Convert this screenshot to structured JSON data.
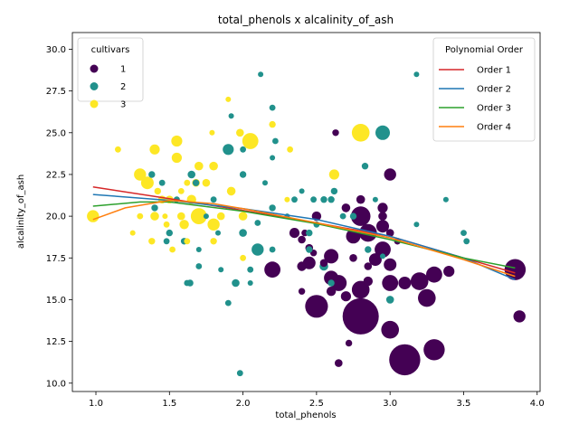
{
  "chart_data": {
    "type": "scatter",
    "title": "total_phenols x alcalinity_of_ash",
    "xlabel": "total_phenols",
    "ylabel": "alcalinity_of_ash",
    "xlim": [
      0.84,
      4.02
    ],
    "ylim": [
      9.5,
      31.0
    ],
    "xticks": [
      "1.0",
      "1.5",
      "2.0",
      "2.5",
      "3.0",
      "3.5",
      "4.0"
    ],
    "xtick_values": [
      1.0,
      1.5,
      2.0,
      2.5,
      3.0,
      3.5,
      4.0
    ],
    "yticks": [
      "10.0",
      "12.5",
      "15.0",
      "17.5",
      "20.0",
      "22.5",
      "25.0",
      "27.5",
      "30.0"
    ],
    "ytick_values": [
      10.0,
      12.5,
      15.0,
      17.5,
      20.0,
      22.5,
      25.0,
      27.5,
      30.0
    ],
    "grid": false,
    "legend_cultivars": {
      "title": "cultivars",
      "placement": "top-left",
      "entries": [
        {
          "label": "1",
          "color": "#440154"
        },
        {
          "label": "2",
          "color": "#21918c"
        },
        {
          "label": "3",
          "color": "#fde725"
        }
      ]
    },
    "legend_fit": {
      "title": "Polynomial Order",
      "placement": "top-right",
      "entries": [
        {
          "label": "Order 1",
          "color": "#d62728"
        },
        {
          "label": "Order 2",
          "color": "#1f77b4"
        },
        {
          "label": "Order 3",
          "color": "#2ca02c"
        },
        {
          "label": "Order 4",
          "color": "#ff7f0e"
        }
      ]
    },
    "series": [
      {
        "cultivar": "1",
        "color": "#440154",
        "points": [
          [
            2.8,
            14.0,
            1.0
          ],
          [
            3.1,
            11.4,
            0.85
          ],
          [
            2.5,
            14.6,
            0.6
          ],
          [
            3.3,
            12.0,
            0.55
          ],
          [
            2.8,
            15.6,
            0.45
          ],
          [
            3.0,
            13.2,
            0.45
          ],
          [
            3.2,
            16.1,
            0.45
          ],
          [
            3.25,
            15.1,
            0.45
          ],
          [
            3.85,
            16.8,
            0.55
          ],
          [
            3.3,
            16.5,
            0.4
          ],
          [
            2.65,
            16.0,
            0.4
          ],
          [
            2.85,
            19.0,
            0.45
          ],
          [
            2.8,
            20.0,
            0.5
          ],
          [
            3.0,
            16.0,
            0.4
          ],
          [
            2.95,
            18.0,
            0.4
          ],
          [
            2.6,
            17.6,
            0.35
          ],
          [
            2.2,
            16.8,
            0.4
          ],
          [
            2.6,
            16.3,
            0.35
          ],
          [
            3.1,
            16.0,
            0.3
          ],
          [
            2.75,
            18.8,
            0.35
          ],
          [
            2.95,
            19.4,
            0.3
          ],
          [
            3.0,
            17.1,
            0.3
          ],
          [
            2.45,
            17.2,
            0.3
          ],
          [
            2.9,
            17.4,
            0.3
          ],
          [
            3.0,
            22.5,
            0.28
          ],
          [
            2.95,
            20.5,
            0.22
          ],
          [
            3.4,
            16.7,
            0.25
          ],
          [
            3.88,
            14.0,
            0.28
          ],
          [
            2.35,
            19.0,
            0.22
          ],
          [
            2.7,
            15.2,
            0.22
          ],
          [
            2.6,
            15.5,
            0.2
          ],
          [
            2.85,
            16.1,
            0.2
          ],
          [
            2.95,
            20.0,
            0.18
          ],
          [
            2.5,
            20.0,
            0.2
          ],
          [
            2.4,
            17.0,
            0.2
          ],
          [
            2.7,
            20.5,
            0.18
          ],
          [
            2.8,
            21.0,
            0.18
          ],
          [
            2.45,
            18.1,
            0.15
          ],
          [
            2.55,
            17.2,
            0.15
          ],
          [
            3.0,
            19.0,
            0.15
          ],
          [
            2.75,
            17.5,
            0.15
          ],
          [
            2.65,
            11.2,
            0.15
          ],
          [
            2.72,
            12.4,
            0.12
          ],
          [
            2.4,
            18.6,
            0.15
          ],
          [
            2.4,
            15.5,
            0.12
          ],
          [
            2.63,
            25.0,
            0.12
          ],
          [
            2.48,
            17.8,
            0.12
          ],
          [
            2.85,
            17.0,
            0.15
          ],
          [
            2.42,
            19.0,
            0.12
          ],
          [
            3.05,
            18.5,
            0.12
          ]
        ]
      },
      {
        "cultivar": "2",
        "color": "#21918c",
        "points": [
          [
            2.95,
            25.0,
            0.35
          ],
          [
            1.9,
            24.0,
            0.25
          ],
          [
            2.1,
            18.0,
            0.28
          ],
          [
            2.55,
            17.0,
            0.18
          ],
          [
            2.0,
            19.0,
            0.15
          ],
          [
            1.95,
            16.0,
            0.15
          ],
          [
            1.9,
            14.8,
            0.1
          ],
          [
            1.98,
            10.6,
            0.1
          ],
          [
            2.2,
            26.5,
            0.1
          ],
          [
            1.4,
            20.5,
            0.12
          ],
          [
            1.5,
            19.0,
            0.12
          ],
          [
            1.64,
            16.0,
            0.12
          ],
          [
            1.6,
            18.5,
            0.12
          ],
          [
            2.0,
            22.5,
            0.12
          ],
          [
            2.2,
            20.5,
            0.12
          ],
          [
            2.62,
            21.5,
            0.12
          ],
          [
            2.6,
            21.0,
            0.12
          ],
          [
            2.55,
            21.0,
            0.12
          ],
          [
            2.83,
            23.0,
            0.12
          ],
          [
            3.0,
            15.0,
            0.15
          ],
          [
            2.75,
            20.0,
            0.12
          ],
          [
            2.85,
            18.0,
            0.12
          ],
          [
            2.35,
            21.0,
            0.1
          ],
          [
            2.45,
            18.0,
            0.12
          ],
          [
            2.2,
            18.0,
            0.1
          ],
          [
            2.1,
            19.6,
            0.1
          ],
          [
            1.65,
            22.5,
            0.15
          ],
          [
            1.68,
            22.0,
            0.12
          ],
          [
            1.8,
            21.0,
            0.1
          ],
          [
            1.7,
            17.0,
            0.1
          ],
          [
            1.55,
            21.0,
            0.1
          ],
          [
            1.45,
            22.0,
            0.1
          ],
          [
            2.5,
            19.5,
            0.1
          ],
          [
            2.6,
            16.0,
            0.12
          ],
          [
            3.5,
            19.0,
            0.1
          ],
          [
            3.52,
            18.5,
            0.1
          ],
          [
            3.18,
            28.5,
            0.08
          ],
          [
            2.12,
            28.5,
            0.08
          ],
          [
            2.9,
            21.0,
            0.08
          ],
          [
            3.38,
            21.0,
            0.08
          ],
          [
            1.92,
            26.0,
            0.08
          ],
          [
            2.4,
            21.5,
            0.08
          ],
          [
            1.75,
            20.0,
            0.08
          ],
          [
            2.3,
            20.0,
            0.08
          ],
          [
            2.05,
            16.8,
            0.1
          ],
          [
            1.38,
            22.5,
            0.12
          ],
          [
            1.62,
            16.0,
            0.1
          ],
          [
            2.0,
            24.0,
            0.1
          ],
          [
            2.22,
            24.5,
            0.1
          ],
          [
            2.45,
            19.0,
            0.12
          ],
          [
            1.85,
            16.8,
            0.08
          ],
          [
            2.2,
            23.5,
            0.08
          ],
          [
            1.48,
            18.5,
            0.1
          ],
          [
            2.68,
            20.0,
            0.1
          ],
          [
            3.18,
            19.5,
            0.08
          ],
          [
            2.05,
            16.0,
            0.08
          ],
          [
            1.83,
            19.0,
            0.08
          ],
          [
            1.7,
            18.0,
            0.08
          ],
          [
            2.48,
            21.0,
            0.1
          ],
          [
            2.95,
            17.6,
            0.08
          ],
          [
            2.15,
            22.0,
            0.08
          ]
        ]
      },
      {
        "cultivar": "3",
        "color": "#fde725",
        "points": [
          [
            2.8,
            25.0,
            0.45
          ],
          [
            2.05,
            24.5,
            0.4
          ],
          [
            1.7,
            20.0,
            0.4
          ],
          [
            1.35,
            22.0,
            0.3
          ],
          [
            1.3,
            22.5,
            0.28
          ],
          [
            0.98,
            20.0,
            0.28
          ],
          [
            1.8,
            19.5,
            0.28
          ],
          [
            1.55,
            24.5,
            0.25
          ],
          [
            1.4,
            24.0,
            0.22
          ],
          [
            1.55,
            23.5,
            0.22
          ],
          [
            2.62,
            22.5,
            0.22
          ],
          [
            1.6,
            19.5,
            0.2
          ],
          [
            1.65,
            21.0,
            0.2
          ],
          [
            1.8,
            23.0,
            0.18
          ],
          [
            1.7,
            23.0,
            0.18
          ],
          [
            2.0,
            20.0,
            0.18
          ],
          [
            1.92,
            21.5,
            0.18
          ],
          [
            1.45,
            21.0,
            0.15
          ],
          [
            1.4,
            20.0,
            0.18
          ],
          [
            1.5,
            21.0,
            0.15
          ],
          [
            1.75,
            22.0,
            0.15
          ],
          [
            1.58,
            20.0,
            0.15
          ],
          [
            1.68,
            22.0,
            0.15
          ],
          [
            1.85,
            20.0,
            0.15
          ],
          [
            1.98,
            25.0,
            0.15
          ],
          [
            2.2,
            25.5,
            0.12
          ],
          [
            1.15,
            24.0,
            0.1
          ],
          [
            1.48,
            19.5,
            0.1
          ],
          [
            1.52,
            18.0,
            0.1
          ],
          [
            1.38,
            18.5,
            0.12
          ],
          [
            1.62,
            18.5,
            0.1
          ],
          [
            1.8,
            18.5,
            0.12
          ],
          [
            1.9,
            27.0,
            0.08
          ],
          [
            1.79,
            25.0,
            0.08
          ],
          [
            2.32,
            24.0,
            0.1
          ],
          [
            1.25,
            19.0,
            0.08
          ],
          [
            1.47,
            20.0,
            0.08
          ],
          [
            1.3,
            20.0,
            0.1
          ],
          [
            1.62,
            22.0,
            0.1
          ],
          [
            1.58,
            21.5,
            0.1
          ],
          [
            2.0,
            17.5,
            0.1
          ],
          [
            2.3,
            21.0,
            0.08
          ],
          [
            1.42,
            21.5,
            0.12
          ]
        ]
      }
    ],
    "fit_lines": [
      {
        "name": "Order 1",
        "color": "#d62728",
        "points": [
          [
            0.98,
            21.75
          ],
          [
            1.5,
            21.05
          ],
          [
            2.0,
            20.35
          ],
          [
            2.5,
            19.6
          ],
          [
            3.0,
            18.8
          ],
          [
            3.5,
            17.5
          ],
          [
            3.85,
            16.6
          ]
        ]
      },
      {
        "name": "Order 2",
        "color": "#1f77b4",
        "points": [
          [
            0.98,
            21.3
          ],
          [
            1.5,
            20.95
          ],
          [
            2.0,
            20.45
          ],
          [
            2.5,
            19.8
          ],
          [
            3.0,
            18.8
          ],
          [
            3.5,
            17.5
          ],
          [
            3.85,
            16.2
          ]
        ]
      },
      {
        "name": "Order 3",
        "color": "#2ca02c",
        "points": [
          [
            0.98,
            20.6
          ],
          [
            1.3,
            20.85
          ],
          [
            1.5,
            20.85
          ],
          [
            2.0,
            20.3
          ],
          [
            2.5,
            19.55
          ],
          [
            3.0,
            18.6
          ],
          [
            3.5,
            17.5
          ],
          [
            3.85,
            16.9
          ]
        ]
      },
      {
        "name": "Order 4",
        "color": "#ff7f0e",
        "points": [
          [
            0.98,
            19.8
          ],
          [
            1.2,
            20.5
          ],
          [
            1.5,
            20.95
          ],
          [
            1.8,
            20.75
          ],
          [
            2.0,
            20.45
          ],
          [
            2.5,
            19.6
          ],
          [
            3.0,
            18.7
          ],
          [
            3.5,
            17.4
          ],
          [
            3.85,
            16.4
          ]
        ]
      }
    ]
  }
}
